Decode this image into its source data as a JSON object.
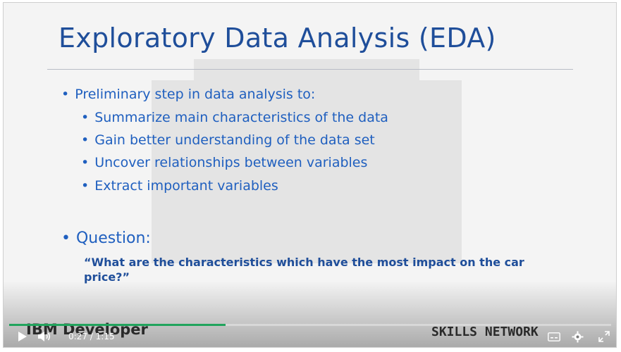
{
  "slide": {
    "title": "Exploratory Data Analysis (EDA)",
    "bullets": [
      "Preliminary step in data analysis to:",
      "Summarize main characteristics of the data",
      "Gain better understanding of the data set",
      "Uncover relationships between variables",
      "Extract important variables",
      "Question:"
    ],
    "bullet_glyph": "•",
    "question_text": "“What are the characteristics which have the most impact on the car price?”"
  },
  "branding": {
    "ibm_logo": "IBM Developer",
    "skills_logo": "SKILLS NETWORK"
  },
  "player": {
    "current_time": "0:27",
    "time_separator": "/",
    "duration": "1:15",
    "progress_fraction": 0.36,
    "progress_color": "#21a45d",
    "icons": [
      "play-icon",
      "volume-icon",
      "closed-captions-icon",
      "settings-gear-icon",
      "fullscreen-icon"
    ]
  },
  "colors": {
    "title": "#1f4e9a",
    "bullet": "#1f5fbf",
    "background": "#f4f4f4"
  }
}
